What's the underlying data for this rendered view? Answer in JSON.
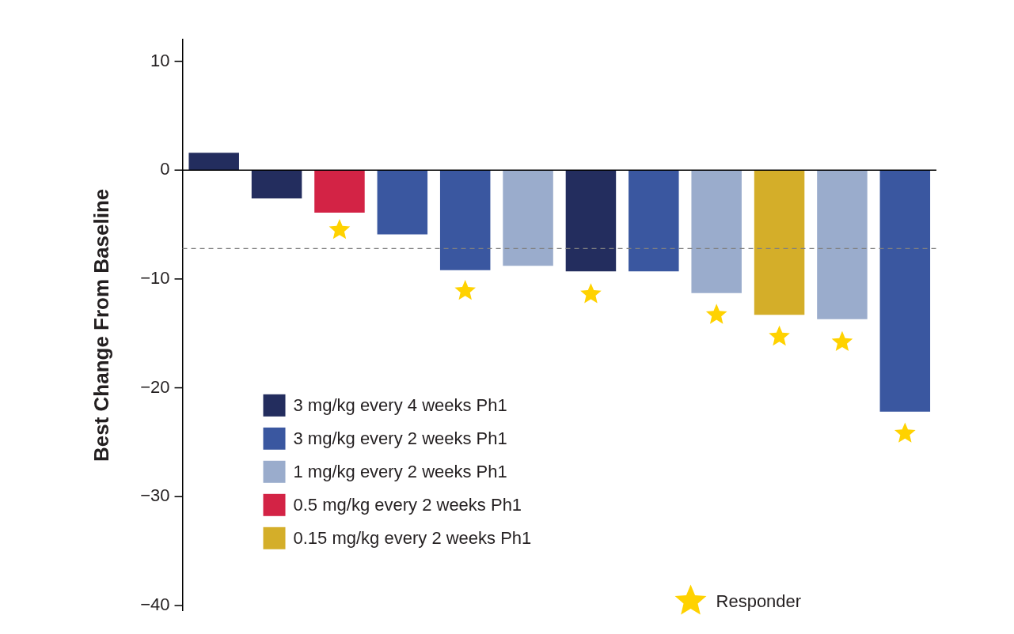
{
  "chart_data": {
    "type": "bar",
    "ylabel": "Best Change From Baseline",
    "categories": [
      null,
      null,
      null,
      null,
      null,
      null,
      null,
      null,
      null,
      null,
      null,
      null
    ],
    "series": [
      {
        "name": "3 mg/kg every 4 weeks Ph1",
        "color": "#232d5e",
        "values": [
          1.6,
          -2.6,
          null,
          null,
          null,
          null,
          -9.3,
          null,
          null,
          null,
          null,
          null
        ]
      },
      {
        "name": "3 mg/kg every 2 weeks Ph1",
        "color": "#3a57a0",
        "values": [
          null,
          null,
          null,
          -5.9,
          -9.2,
          null,
          null,
          -9.3,
          null,
          null,
          null,
          -22.2
        ]
      },
      {
        "name": "1 mg/kg every 2 weeks Ph1",
        "color": "#9aaccc",
        "values": [
          null,
          null,
          null,
          null,
          null,
          -8.8,
          null,
          null,
          -11.3,
          null,
          -13.7,
          null
        ]
      },
      {
        "name": "0.5 mg/kg every 2 weeks Ph1",
        "color": "#d32345",
        "values": [
          null,
          null,
          -3.9,
          null,
          null,
          null,
          null,
          null,
          null,
          null,
          null,
          null
        ]
      },
      {
        "name": "0.15 mg/kg every 2 weeks Ph1",
        "color": "#d4ae29",
        "values": [
          null,
          null,
          null,
          null,
          null,
          null,
          null,
          null,
          null,
          -13.3,
          null,
          null
        ]
      },
      {
        "name": "Responder",
        "type": "scatter",
        "marker": "star",
        "color": "#ffd200",
        "values": [
          null,
          null,
          -5.5,
          null,
          -11.1,
          null,
          -11.4,
          null,
          -13.3,
          -15.3,
          -15.8,
          -24.2
        ]
      }
    ],
    "ylim": [
      -40.5,
      12
    ],
    "yticks": [
      {
        "value": 10,
        "label": "10"
      },
      {
        "value": 0,
        "label": "0"
      },
      {
        "value": -10,
        "label": "−10"
      },
      {
        "value": -20,
        "label": "−20"
      },
      {
        "value": -30,
        "label": "−30"
      },
      {
        "value": -40,
        "label": "−40"
      }
    ],
    "ref_lines": [
      {
        "axis": "y",
        "value": 0,
        "color": "#000000",
        "line_style": "solid"
      },
      {
        "axis": "y",
        "value": -7.2,
        "color": "#808080",
        "line_style": "dashed"
      }
    ],
    "grid": false,
    "legend": "bottom left"
  }
}
